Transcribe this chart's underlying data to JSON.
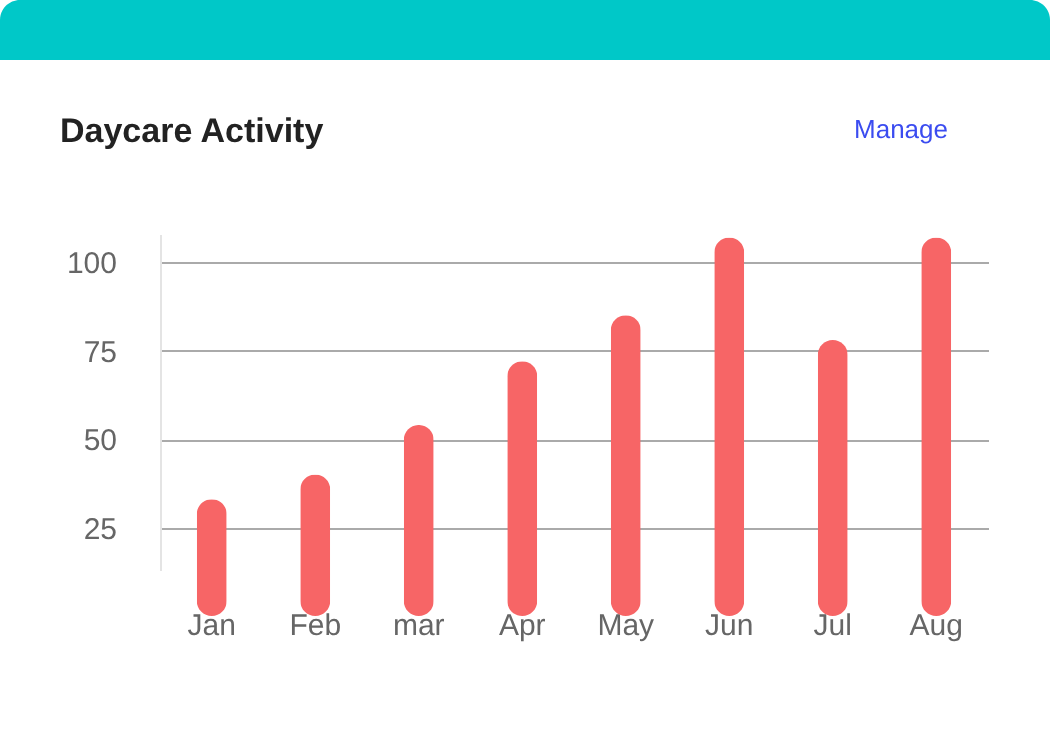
{
  "chart_data": {
    "type": "bar",
    "title": "Daycare Activity",
    "annotations": [
      "Manage"
    ],
    "categories": [
      "Jan",
      "Feb",
      "mar",
      "Apr",
      "May",
      "Jun",
      "Jul",
      "Aug"
    ],
    "values": [
      33,
      40,
      54,
      72,
      85,
      107,
      78,
      107
    ],
    "color": "#f76566",
    "ylim": [
      13,
      108
    ],
    "yticks": [
      25,
      50,
      75,
      100
    ],
    "grid": "y"
  }
}
